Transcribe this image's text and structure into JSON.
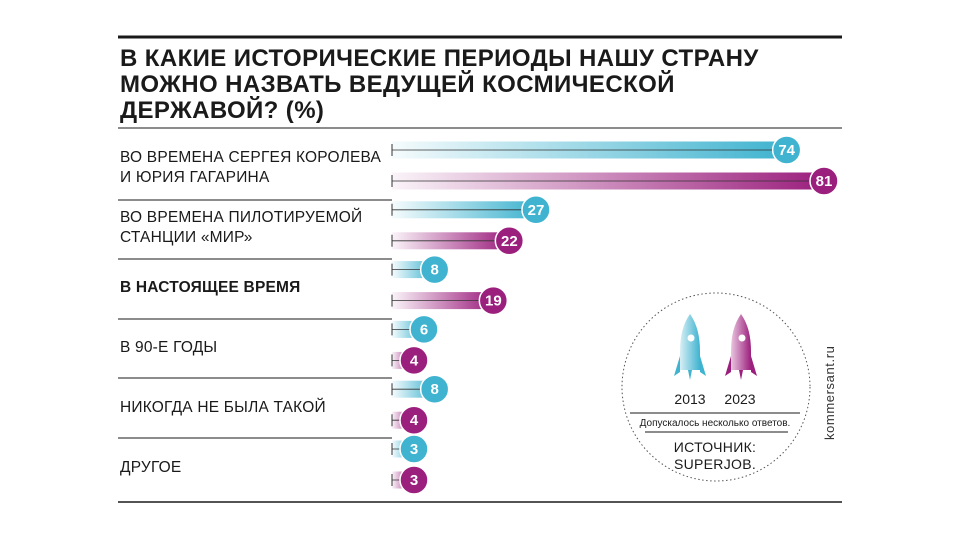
{
  "chart_data": {
    "type": "bar",
    "orientation": "horizontal",
    "title": "В КАКИЕ ИСТОРИЧЕСКИЕ ПЕРИОДЫ НАШУ СТРАНУ МОЖНО НАЗВАТЬ ВЕДУЩЕЙ КОСМИЧЕСКОЙ ДЕРЖАВОЙ? (%)",
    "title_lines": [
      "В КАКИЕ ИСТОРИЧЕСКИЕ ПЕРИОДЫ НАШУ СТРАНУ",
      "МОЖНО НАЗВАТЬ ВЕДУЩЕЙ КОСМИЧЕСКОЙ",
      "ДЕРЖАВОЙ? (%)"
    ],
    "categories": [
      {
        "lines": [
          "ВО ВРЕМЕНА СЕРГЕЯ КОРОЛЕВА",
          "И ЮРИЯ ГАГАРИНА"
        ],
        "bold": false
      },
      {
        "lines": [
          "ВО ВРЕМЕНА ПИЛОТИРУЕМОЙ",
          "СТАНЦИИ «МИР»"
        ],
        "bold": false
      },
      {
        "lines": [
          "В НАСТОЯЩЕЕ ВРЕМЯ"
        ],
        "bold": true
      },
      {
        "lines": [
          "В 90-Е ГОДЫ"
        ],
        "bold": false
      },
      {
        "lines": [
          "НИКОГДА НЕ БЫЛА ТАКОЙ"
        ],
        "bold": false
      },
      {
        "lines": [
          "ДРУГОЕ"
        ],
        "bold": false
      }
    ],
    "series": [
      {
        "name": "2013",
        "color": "#3fb3cf",
        "values": [
          74,
          27,
          8,
          6,
          8,
          3
        ]
      },
      {
        "name": "2023",
        "color": "#9b1f7d",
        "values": [
          81,
          22,
          19,
          4,
          4,
          3
        ]
      }
    ],
    "xlim": [
      0,
      81
    ],
    "legend": {
      "items": [
        "2013",
        "2023"
      ],
      "note": "Допускалось несколько ответов.",
      "source_lines": [
        "ИСТОЧНИК:",
        "SUPERJOB."
      ]
    },
    "unit": "%"
  },
  "brand": "kommersant.ru"
}
